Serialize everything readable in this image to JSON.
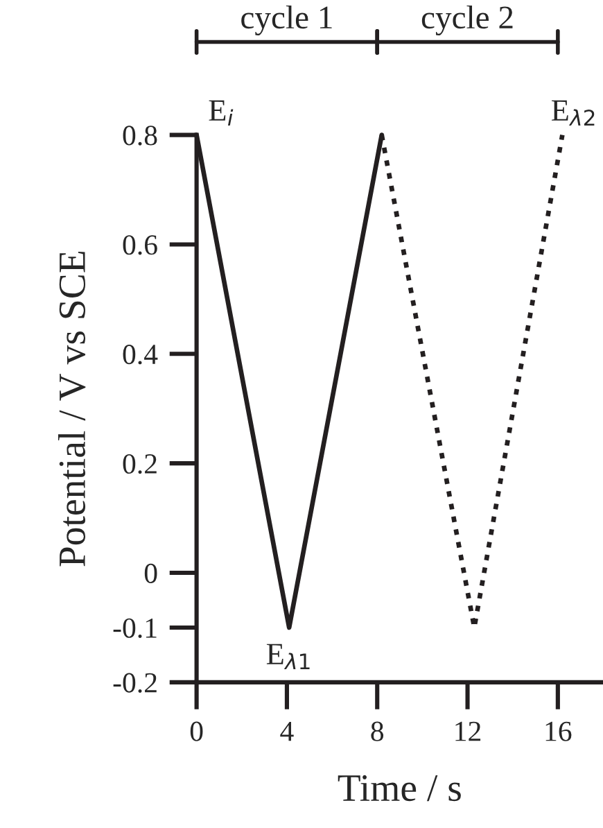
{
  "chart_data": {
    "type": "line",
    "xlabel": "Time / s",
    "ylabel": "Potential / V vs SCE",
    "series": [
      {
        "x": [
          0,
          4.1,
          8.2
        ],
        "values": [
          0.8,
          -0.1,
          0.8
        ],
        "color": "#231f20",
        "line_style": "solid"
      },
      {
        "x": [
          8.2,
          12.3,
          16.2
        ],
        "values": [
          0.8,
          -0.1,
          0.8
        ],
        "color": "#231f20",
        "line_style": "dotted"
      }
    ],
    "xlim": [
      0,
      18
    ],
    "xticks": [
      0,
      4,
      8,
      12,
      16
    ],
    "ylim": [
      -0.2,
      0.8
    ],
    "yticks": [
      -0.2,
      -0.1,
      0,
      0.2,
      0.4,
      0.6,
      0.8
    ],
    "annotations": [
      "cycle 1",
      "cycle 2",
      {
        "text": "E$_{i}$",
        "x": 0,
        "y": 0.8
      },
      {
        "text": "E$_{λ1}$",
        "x": 4.1,
        "y": -0.1
      },
      {
        "text": "E$_{λ2}$",
        "x": 16.2,
        "y": 0.8
      }
    ],
    "grid": false,
    "legend": false
  }
}
